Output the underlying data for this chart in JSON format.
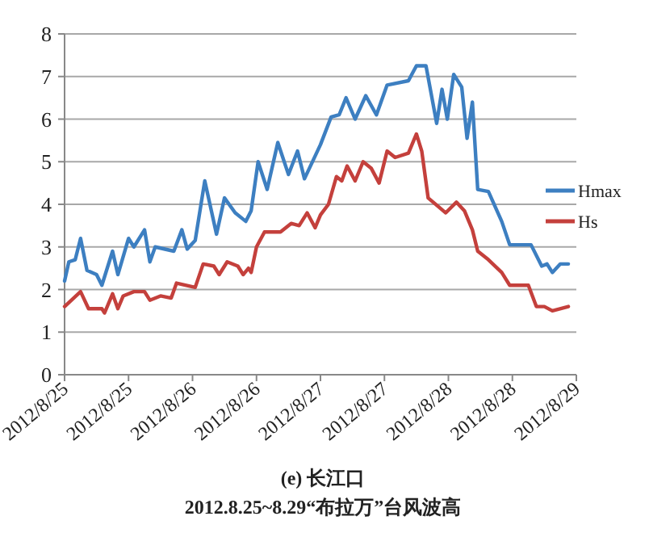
{
  "chart_data": {
    "type": "line",
    "title": "(e) 长江口",
    "subtitle": "2012.8.25~8.29“布拉万”台风波高",
    "xlim": [
      "2012-08-25T00:00",
      "2012-08-29T00:00"
    ],
    "xticks": [
      {
        "value": "2012-08-25T00:00",
        "label": "2012/8/25"
      },
      {
        "value": "2012-08-25T12:00",
        "label": "2012/8/25"
      },
      {
        "value": "2012-08-26T00:00",
        "label": "2012/8/26"
      },
      {
        "value": "2012-08-26T12:00",
        "label": "2012/8/26"
      },
      {
        "value": "2012-08-27T00:00",
        "label": "2012/8/27"
      },
      {
        "value": "2012-08-27T12:00",
        "label": "2012/8/27"
      },
      {
        "value": "2012-08-28T00:00",
        "label": "2012/8/28"
      },
      {
        "value": "2012-08-28T12:00",
        "label": "2012/8/28"
      },
      {
        "value": "2012-08-29T00:00",
        "label": "2012/8/29"
      }
    ],
    "ylim": [
      0,
      8
    ],
    "yticks": [
      0,
      1,
      2,
      3,
      4,
      5,
      6,
      7,
      8
    ],
    "grid": "y",
    "legend": "right",
    "marker": "none",
    "line_style": "solid",
    "series": [
      {
        "name": "Hmax",
        "color": "#3d7fc1",
        "x": [
          "2012-08-25T00:00",
          "2012-08-25T00:48",
          "2012-08-25T02:00",
          "2012-08-25T03:00",
          "2012-08-25T04:12",
          "2012-08-25T06:00",
          "2012-08-25T07:00",
          "2012-08-25T09:00",
          "2012-08-25T10:00",
          "2012-08-25T12:00",
          "2012-08-25T13:00",
          "2012-08-25T15:00",
          "2012-08-25T16:00",
          "2012-08-25T17:00",
          "2012-08-25T20:30",
          "2012-08-25T22:00",
          "2012-08-25T23:00",
          "2012-08-26T00:30",
          "2012-08-26T02:18",
          "2012-08-26T04:30",
          "2012-08-26T06:00",
          "2012-08-26T08:00",
          "2012-08-26T10:00",
          "2012-08-26T11:00",
          "2012-08-26T12:18",
          "2012-08-26T14:00",
          "2012-08-26T16:00",
          "2012-08-26T18:00",
          "2012-08-26T19:42",
          "2012-08-26T21:00",
          "2012-08-27T00:00",
          "2012-08-27T02:00",
          "2012-08-27T03:30",
          "2012-08-27T04:48",
          "2012-08-27T06:30",
          "2012-08-27T08:30",
          "2012-08-27T10:30",
          "2012-08-27T12:30",
          "2012-08-27T16:30",
          "2012-08-27T18:00",
          "2012-08-27T19:48",
          "2012-08-27T21:48",
          "2012-08-27T22:48",
          "2012-08-27T23:48",
          "2012-08-28T01:00",
          "2012-08-28T02:30",
          "2012-08-28T03:30",
          "2012-08-28T04:30",
          "2012-08-28T05:30",
          "2012-08-28T07:30",
          "2012-08-28T10:00",
          "2012-08-28T11:30",
          "2012-08-28T15:30",
          "2012-08-28T17:30",
          "2012-08-28T18:30",
          "2012-08-28T19:30",
          "2012-08-28T21:00",
          "2012-08-28T22:30"
        ],
        "values": [
          2.2,
          2.65,
          2.7,
          3.2,
          2.45,
          2.35,
          2.1,
          2.9,
          2.35,
          3.2,
          3.0,
          3.4,
          2.65,
          3.0,
          2.9,
          3.4,
          2.95,
          3.15,
          4.55,
          3.3,
          4.15,
          3.8,
          3.6,
          3.85,
          5.0,
          4.35,
          5.45,
          4.7,
          5.25,
          4.6,
          5.4,
          6.05,
          6.1,
          6.5,
          6.0,
          6.55,
          6.1,
          6.8,
          6.9,
          7.25,
          7.25,
          5.9,
          6.7,
          6.0,
          7.05,
          6.75,
          5.55,
          6.4,
          4.35,
          4.3,
          3.6,
          3.05,
          3.05,
          2.55,
          2.6,
          2.4,
          2.6,
          2.6
        ]
      },
      {
        "name": "Hs",
        "color": "#c4403c",
        "x": [
          "2012-08-25T00:00",
          "2012-08-25T03:00",
          "2012-08-25T04:30",
          "2012-08-25T07:00",
          "2012-08-25T07:30",
          "2012-08-25T09:00",
          "2012-08-25T10:00",
          "2012-08-25T11:00",
          "2012-08-25T13:00",
          "2012-08-25T15:00",
          "2012-08-25T16:00",
          "2012-08-25T18:00",
          "2012-08-25T20:00",
          "2012-08-25T21:00",
          "2012-08-26T00:30",
          "2012-08-26T02:00",
          "2012-08-26T04:00",
          "2012-08-26T05:00",
          "2012-08-26T06:30",
          "2012-08-26T08:30",
          "2012-08-26T09:30",
          "2012-08-26T10:30",
          "2012-08-26T11:00",
          "2012-08-26T12:00",
          "2012-08-26T13:30",
          "2012-08-26T16:30",
          "2012-08-26T18:30",
          "2012-08-26T20:00",
          "2012-08-26T21:30",
          "2012-08-26T23:00",
          "2012-08-27T00:00",
          "2012-08-27T01:30",
          "2012-08-27T03:00",
          "2012-08-27T04:00",
          "2012-08-27T05:00",
          "2012-08-27T06:30",
          "2012-08-27T08:00",
          "2012-08-27T09:30",
          "2012-08-27T11:00",
          "2012-08-27T12:30",
          "2012-08-27T14:00",
          "2012-08-27T16:30",
          "2012-08-27T18:00",
          "2012-08-27T19:00",
          "2012-08-27T20:12",
          "2012-08-27T23:30",
          "2012-08-28T01:30",
          "2012-08-28T03:00",
          "2012-08-28T04:30",
          "2012-08-28T05:30",
          "2012-08-28T07:30",
          "2012-08-28T10:00",
          "2012-08-28T11:30",
          "2012-08-28T15:00",
          "2012-08-28T16:30",
          "2012-08-28T18:00",
          "2012-08-28T19:30",
          "2012-08-28T22:30"
        ],
        "values": [
          1.6,
          1.95,
          1.55,
          1.55,
          1.45,
          1.9,
          1.55,
          1.85,
          1.95,
          1.95,
          1.75,
          1.85,
          1.8,
          2.15,
          2.05,
          2.6,
          2.55,
          2.35,
          2.65,
          2.55,
          2.35,
          2.5,
          2.4,
          3.0,
          3.35,
          3.35,
          3.55,
          3.5,
          3.8,
          3.45,
          3.75,
          4.0,
          4.65,
          4.55,
          4.9,
          4.55,
          5.0,
          4.85,
          4.5,
          5.25,
          5.1,
          5.2,
          5.65,
          5.25,
          4.15,
          3.8,
          4.05,
          3.85,
          3.4,
          2.9,
          2.7,
          2.4,
          2.1,
          2.1,
          1.6,
          1.6,
          1.5,
          1.6
        ]
      }
    ]
  }
}
